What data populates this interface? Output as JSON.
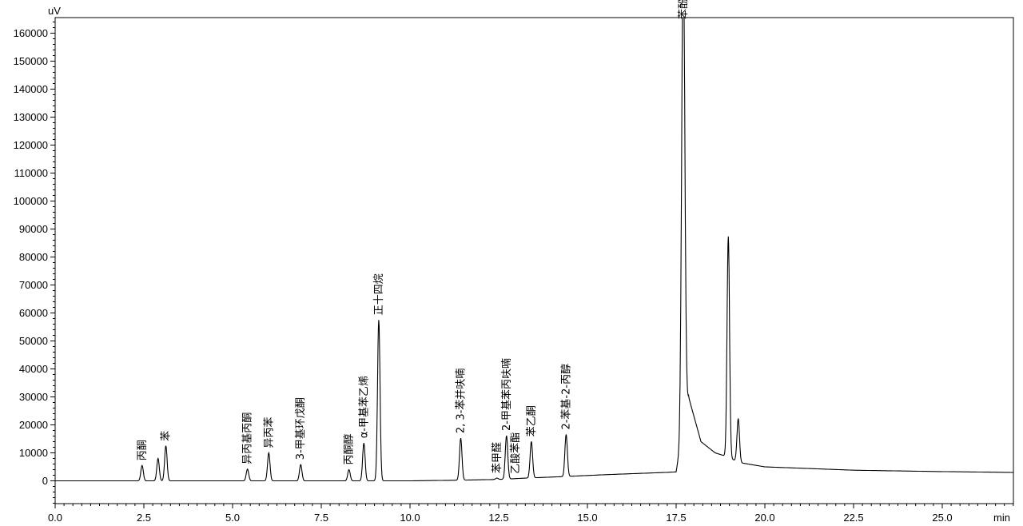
{
  "chart_data": {
    "type": "line",
    "title": "",
    "xlabel": "min",
    "ylabel": "uV",
    "xlim": [
      0,
      27
    ],
    "ylim": [
      -8000,
      166000
    ],
    "grid": false,
    "legend": "none",
    "line_color": "#000000",
    "x_ticks": [
      "0.0",
      "2.5",
      "5.0",
      "7.5",
      "10.0",
      "12.5",
      "15.0",
      "17.5",
      "20.0",
      "22.5",
      "25.0"
    ],
    "y_ticks": [
      "0",
      "10000",
      "20000",
      "30000",
      "40000",
      "50000",
      "60000",
      "70000",
      "80000",
      "90000",
      "100000",
      "110000",
      "120000",
      "130000",
      "140000",
      "150000",
      "160000"
    ],
    "baseline": [
      {
        "x": 0.0,
        "y": 0
      },
      {
        "x": 10.0,
        "y": 0
      },
      {
        "x": 11.2,
        "y": 200
      },
      {
        "x": 12.5,
        "y": 500
      },
      {
        "x": 13.3,
        "y": 1000
      },
      {
        "x": 14.3,
        "y": 1500
      },
      {
        "x": 15.5,
        "y": 2200
      },
      {
        "x": 17.2,
        "y": 3000
      },
      {
        "x": 17.5,
        "y": 3200
      },
      {
        "x": 17.85,
        "y": 30000
      },
      {
        "x": 18.2,
        "y": 14000
      },
      {
        "x": 18.6,
        "y": 10000
      },
      {
        "x": 18.85,
        "y": 9000
      },
      {
        "x": 19.3,
        "y": 6500
      },
      {
        "x": 20.0,
        "y": 5000
      },
      {
        "x": 22.5,
        "y": 3800
      },
      {
        "x": 25.0,
        "y": 3300
      },
      {
        "x": 27.0,
        "y": 3000
      }
    ],
    "peaks": [
      {
        "rt": 2.45,
        "height": 5500,
        "label": "丙酮"
      },
      {
        "rt": 2.9,
        "height": 8000,
        "label": ""
      },
      {
        "rt": 3.12,
        "height": 12500,
        "label": "苯"
      },
      {
        "rt": 5.42,
        "height": 4200,
        "label": "异丙基丙酮"
      },
      {
        "rt": 6.02,
        "height": 10000,
        "label": "异丙苯"
      },
      {
        "rt": 6.92,
        "height": 5800,
        "label": "3-甲基环戊酮"
      },
      {
        "rt": 8.28,
        "height": 4000,
        "label": "丙酮醇"
      },
      {
        "rt": 8.7,
        "height": 13500,
        "label": "α-甲基苯乙烯"
      },
      {
        "rt": 9.12,
        "height": 57500,
        "label": "正十四烷"
      },
      {
        "rt": 11.43,
        "height": 15000,
        "label": "2, 3-苯并呋喃"
      },
      {
        "rt": 12.45,
        "height": 500,
        "label": "苯甲醛"
      },
      {
        "rt": 12.72,
        "height": 15500,
        "label": "2-甲基苯丙呋喃"
      },
      {
        "rt": 12.97,
        "height": 0,
        "label": "乙酸苯酯"
      },
      {
        "rt": 13.42,
        "height": 13000,
        "label": "苯乙酮"
      },
      {
        "rt": 14.4,
        "height": 15000,
        "label": "2-苯基-2-丙醇"
      },
      {
        "rt": 17.7,
        "height": 170000,
        "label": "苯酚"
      },
      {
        "rt": 18.97,
        "height": 79000,
        "label": ""
      },
      {
        "rt": 19.25,
        "height": 15500,
        "label": ""
      }
    ]
  }
}
